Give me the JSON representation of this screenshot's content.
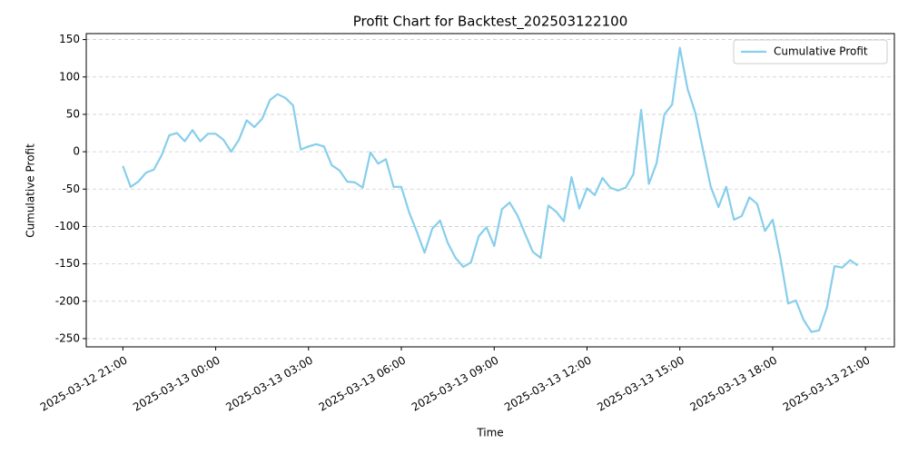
{
  "chart_data": {
    "type": "line",
    "title": "Profit Chart for Backtest_202503122100",
    "xlabel": "Time",
    "ylabel": "Cumulative Profit",
    "x": [
      "2025-03-12 21:00",
      "2025-03-12 21:15",
      "2025-03-12 21:30",
      "2025-03-12 21:45",
      "2025-03-12 22:00",
      "2025-03-12 22:15",
      "2025-03-12 22:30",
      "2025-03-12 22:45",
      "2025-03-12 23:00",
      "2025-03-12 23:15",
      "2025-03-12 23:30",
      "2025-03-12 23:45",
      "2025-03-13 00:00",
      "2025-03-13 00:15",
      "2025-03-13 00:30",
      "2025-03-13 00:45",
      "2025-03-13 01:00",
      "2025-03-13 01:15",
      "2025-03-13 01:30",
      "2025-03-13 01:45",
      "2025-03-13 02:00",
      "2025-03-13 02:15",
      "2025-03-13 02:30",
      "2025-03-13 02:45",
      "2025-03-13 03:00",
      "2025-03-13 03:15",
      "2025-03-13 03:30",
      "2025-03-13 03:45",
      "2025-03-13 04:00",
      "2025-03-13 04:15",
      "2025-03-13 04:30",
      "2025-03-13 04:45",
      "2025-03-13 05:00",
      "2025-03-13 05:15",
      "2025-03-13 05:30",
      "2025-03-13 05:45",
      "2025-03-13 06:00",
      "2025-03-13 06:15",
      "2025-03-13 06:30",
      "2025-03-13 06:45",
      "2025-03-13 07:00",
      "2025-03-13 07:15",
      "2025-03-13 07:30",
      "2025-03-13 07:45",
      "2025-03-13 08:00",
      "2025-03-13 08:15",
      "2025-03-13 08:30",
      "2025-03-13 08:45",
      "2025-03-13 09:00",
      "2025-03-13 09:15",
      "2025-03-13 09:30",
      "2025-03-13 09:45",
      "2025-03-13 10:00",
      "2025-03-13 10:15",
      "2025-03-13 10:30",
      "2025-03-13 10:45",
      "2025-03-13 11:00",
      "2025-03-13 11:15",
      "2025-03-13 11:30",
      "2025-03-13 11:45",
      "2025-03-13 12:00",
      "2025-03-13 12:15",
      "2025-03-13 12:30",
      "2025-03-13 12:45",
      "2025-03-13 13:00",
      "2025-03-13 13:15",
      "2025-03-13 13:30",
      "2025-03-13 13:45",
      "2025-03-13 14:00",
      "2025-03-13 14:15",
      "2025-03-13 14:30",
      "2025-03-13 14:45",
      "2025-03-13 15:00",
      "2025-03-13 15:15",
      "2025-03-13 15:30",
      "2025-03-13 15:45",
      "2025-03-13 16:00",
      "2025-03-13 16:15",
      "2025-03-13 16:30",
      "2025-03-13 16:45",
      "2025-03-13 17:00",
      "2025-03-13 17:15",
      "2025-03-13 17:30",
      "2025-03-13 17:45",
      "2025-03-13 18:00",
      "2025-03-13 18:15",
      "2025-03-13 18:30",
      "2025-03-13 18:45",
      "2025-03-13 19:00",
      "2025-03-13 19:15",
      "2025-03-13 19:30",
      "2025-03-13 19:45",
      "2025-03-13 20:00",
      "2025-03-13 20:15",
      "2025-03-13 20:30",
      "2025-03-13 20:45"
    ],
    "series": [
      {
        "name": "Cumulative Profit",
        "color": "#87ceeb",
        "values": [
          -19,
          -47,
          -40,
          -28,
          -24,
          -5,
          22,
          25,
          14,
          29,
          14,
          24,
          24,
          16,
          0,
          16,
          42,
          33,
          44,
          69,
          77,
          72,
          62,
          3,
          7,
          10,
          7,
          -18,
          -25,
          -40,
          -41,
          -48,
          -1,
          -16,
          -10,
          -47,
          -47,
          -81,
          -107,
          -135,
          -103,
          -92,
          -122,
          -142,
          -154,
          -148,
          -113,
          -101,
          -126,
          -77,
          -68,
          -85,
          -110,
          -134,
          -142,
          -72,
          -80,
          -93,
          -34,
          -76,
          -49,
          -58,
          -35,
          -48,
          -52,
          -48,
          -30,
          56,
          -43,
          -15,
          50,
          63,
          139,
          84,
          52,
          2,
          -47,
          -74,
          -47,
          -91,
          -86,
          -61,
          -70,
          -106,
          -91,
          -142,
          -203,
          -199,
          -225,
          -241,
          -239,
          -209,
          -153,
          -155,
          -145,
          -152
        ]
      }
    ],
    "xlim": [
      "2025-03-12 19:49",
      "2025-03-13 21:56"
    ],
    "xticks": [
      "2025-03-12 21:00",
      "2025-03-13 00:00",
      "2025-03-13 03:00",
      "2025-03-13 06:00",
      "2025-03-13 09:00",
      "2025-03-13 12:00",
      "2025-03-13 15:00",
      "2025-03-13 18:00",
      "2025-03-13 21:00"
    ],
    "ylim": [
      -261,
      158
    ],
    "yticks": [
      -250,
      -200,
      -150,
      -100,
      -50,
      0,
      50,
      100,
      150
    ],
    "grid": true,
    "legend": "upper right"
  }
}
